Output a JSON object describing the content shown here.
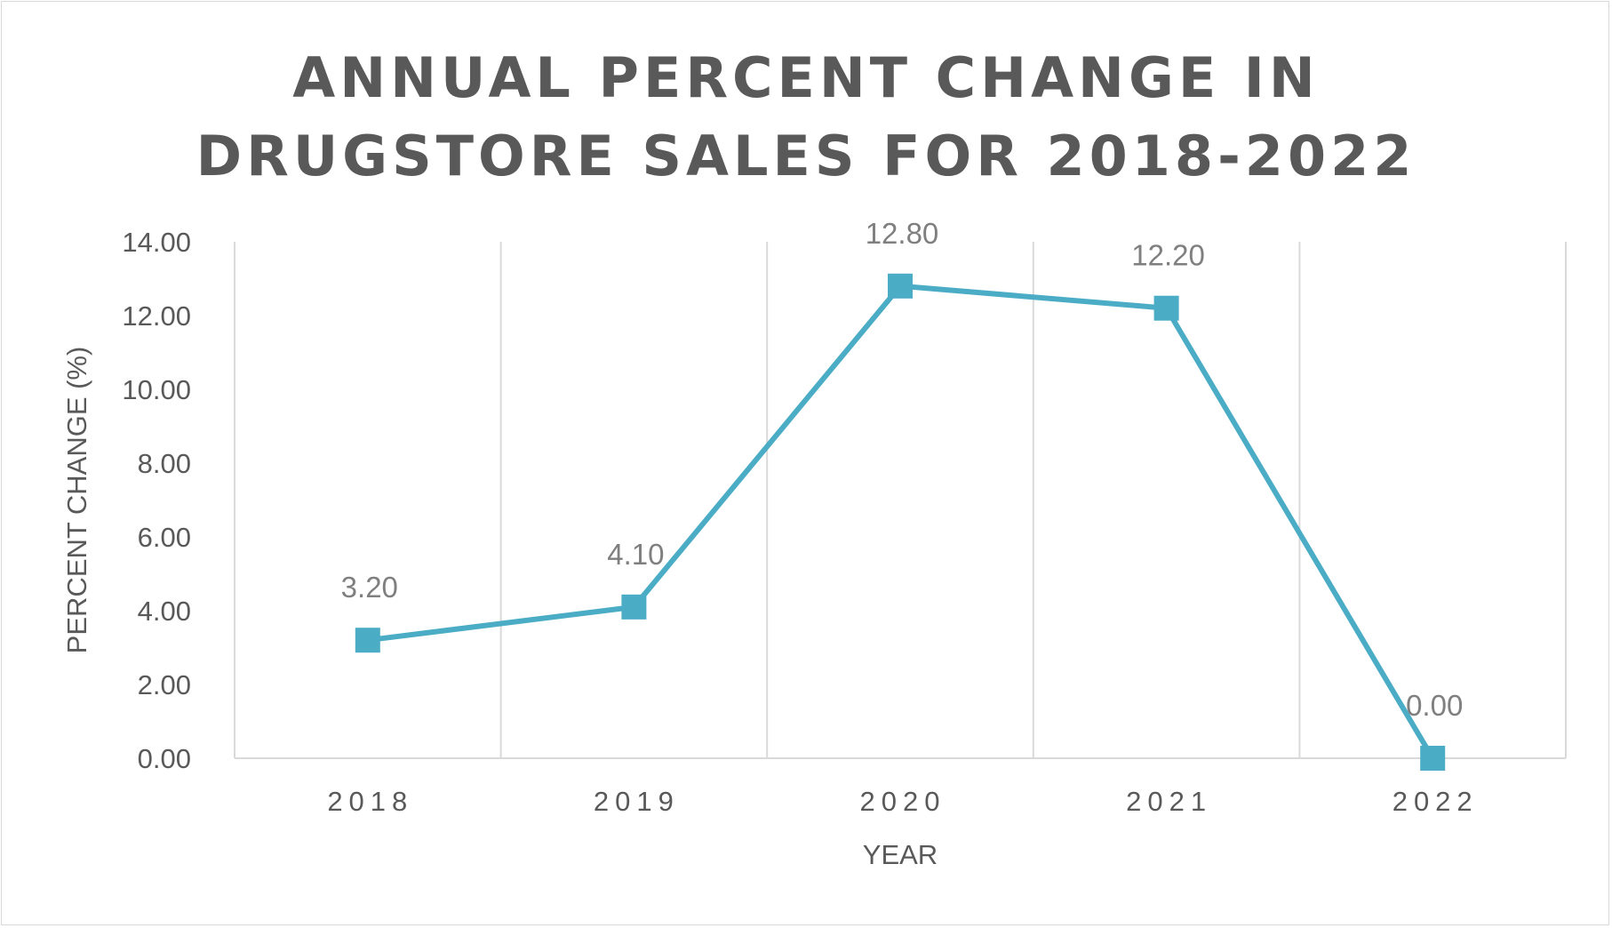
{
  "chart_data": {
    "type": "line",
    "title_lines": [
      "ANNUAL PERCENT CHANGE IN",
      "DRUGSTORE SALES FOR 2018-2022"
    ],
    "xlabel": "YEAR",
    "ylabel": "PERCENT CHANGE (%)",
    "categories": [
      "2018",
      "2019",
      "2020",
      "2021",
      "2022"
    ],
    "series": [
      {
        "values": [
          3.2,
          4.1,
          12.8,
          12.2,
          0.0
        ],
        "color": "#4bacc6"
      }
    ],
    "data_labels": [
      "3.20",
      "4.10",
      "12.80",
      "12.20",
      "0.00"
    ],
    "y_ticks": [
      "0.00",
      "2.00",
      "4.00",
      "6.00",
      "8.00",
      "10.00",
      "12.00",
      "14.00"
    ],
    "ylim": [
      0,
      14
    ],
    "grid": "vertical",
    "legend": "none",
    "marker": "square"
  }
}
